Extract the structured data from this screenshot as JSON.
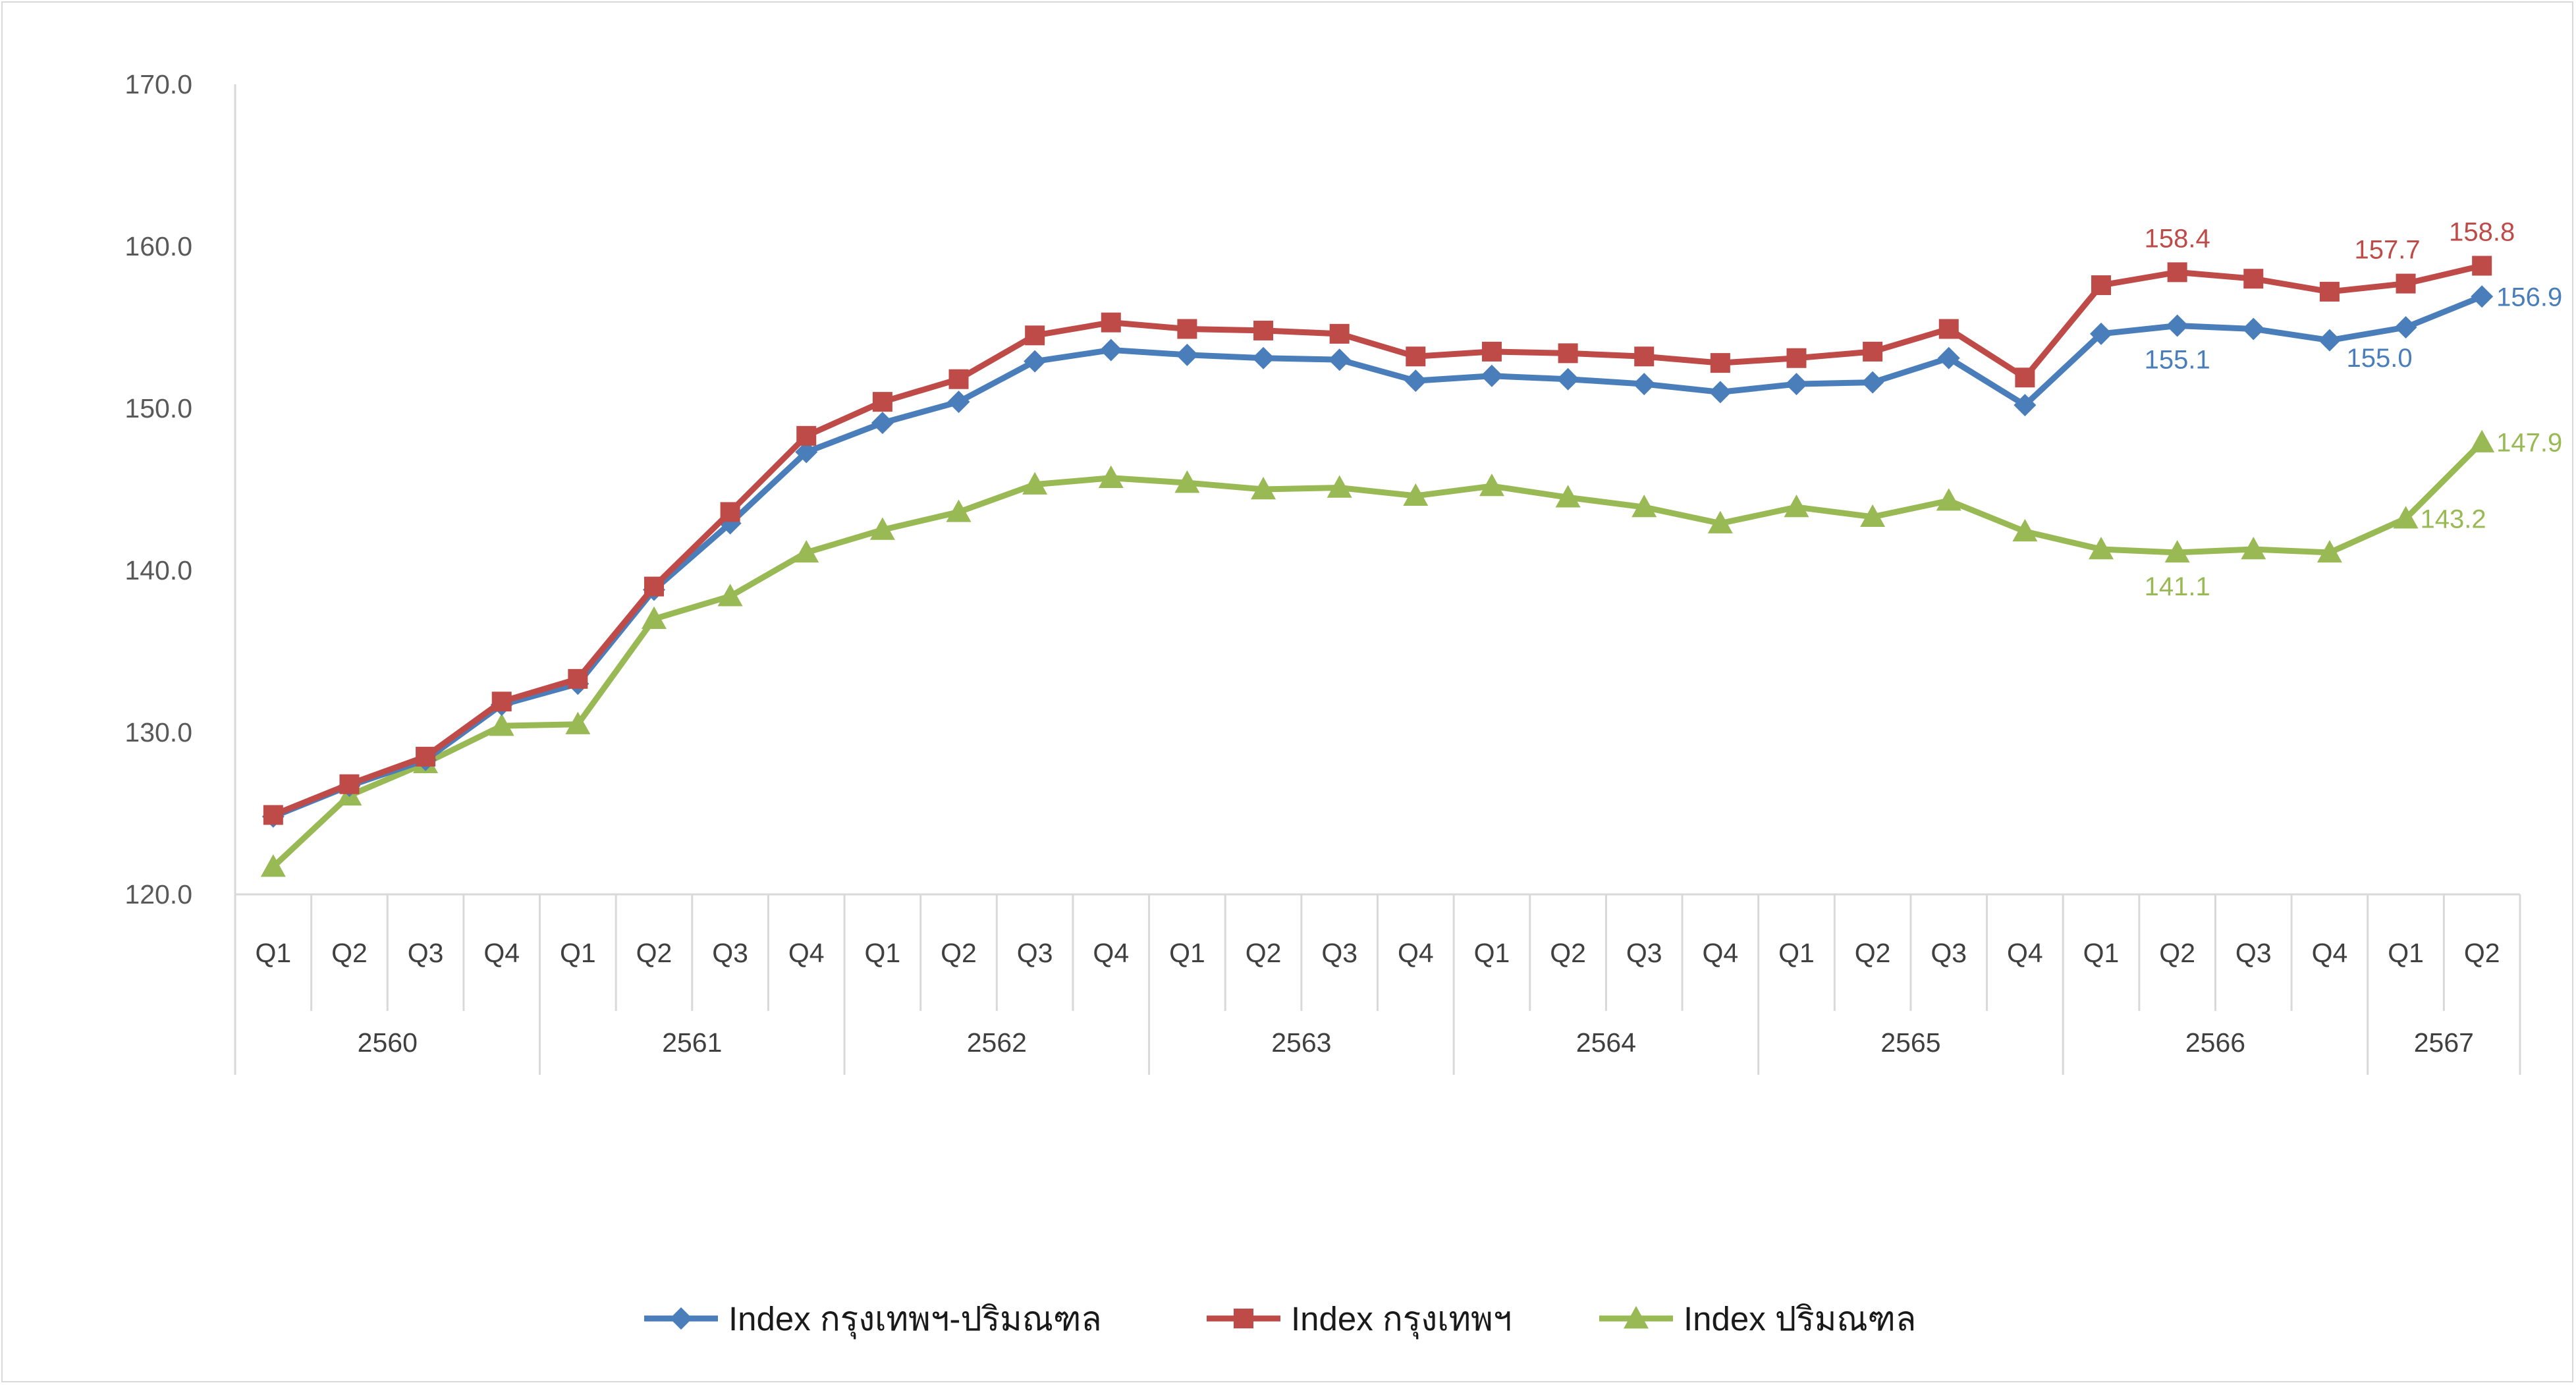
{
  "chart_data": {
    "type": "line",
    "title": "",
    "xlabel": "",
    "ylabel": "",
    "ylim": [
      120,
      170
    ],
    "yticks": [
      "120.0",
      "130.0",
      "140.0",
      "150.0",
      "160.0",
      "170.0"
    ],
    "grid": false,
    "legend_position": "bottom",
    "x": [
      {
        "q": "Q1",
        "year": "2560"
      },
      {
        "q": "Q2",
        "year": "2560"
      },
      {
        "q": "Q3",
        "year": "2560"
      },
      {
        "q": "Q4",
        "year": "2560"
      },
      {
        "q": "Q1",
        "year": "2561"
      },
      {
        "q": "Q2",
        "year": "2561"
      },
      {
        "q": "Q3",
        "year": "2561"
      },
      {
        "q": "Q4",
        "year": "2561"
      },
      {
        "q": "Q1",
        "year": "2562"
      },
      {
        "q": "Q2",
        "year": "2562"
      },
      {
        "q": "Q3",
        "year": "2562"
      },
      {
        "q": "Q4",
        "year": "2562"
      },
      {
        "q": "Q1",
        "year": "2563"
      },
      {
        "q": "Q2",
        "year": "2563"
      },
      {
        "q": "Q3",
        "year": "2563"
      },
      {
        "q": "Q4",
        "year": "2563"
      },
      {
        "q": "Q1",
        "year": "2564"
      },
      {
        "q": "Q2",
        "year": "2564"
      },
      {
        "q": "Q3",
        "year": "2564"
      },
      {
        "q": "Q4",
        "year": "2564"
      },
      {
        "q": "Q1",
        "year": "2565"
      },
      {
        "q": "Q2",
        "year": "2565"
      },
      {
        "q": "Q3",
        "year": "2565"
      },
      {
        "q": "Q4",
        "year": "2565"
      },
      {
        "q": "Q1",
        "year": "2566"
      },
      {
        "q": "Q2",
        "year": "2566"
      },
      {
        "q": "Q3",
        "year": "2566"
      },
      {
        "q": "Q4",
        "year": "2566"
      },
      {
        "q": "Q1",
        "year": "2567"
      },
      {
        "q": "Q2",
        "year": "2567"
      }
    ],
    "years": [
      {
        "label": "2560",
        "count": 4
      },
      {
        "label": "2561",
        "count": 4
      },
      {
        "label": "2562",
        "count": 4
      },
      {
        "label": "2563",
        "count": 4
      },
      {
        "label": "2564",
        "count": 4
      },
      {
        "label": "2565",
        "count": 4
      },
      {
        "label": "2566",
        "count": 4
      },
      {
        "label": "2567",
        "count": 2
      }
    ],
    "series": [
      {
        "name": "Index กรุงเทพฯ-ปริมณฑล",
        "color": "#4a7ebb",
        "marker": "diamond",
        "values": [
          124.8,
          126.7,
          128.3,
          131.7,
          133.0,
          138.8,
          142.9,
          147.3,
          149.1,
          150.4,
          152.9,
          153.6,
          153.3,
          153.1,
          153.0,
          151.7,
          152.0,
          151.8,
          151.5,
          151.0,
          151.5,
          151.6,
          153.1,
          150.2,
          154.6,
          155.1,
          154.9,
          154.2,
          155.0,
          156.9
        ],
        "labels": [
          {
            "index": 25,
            "text": "155.1",
            "position": "below"
          },
          {
            "index": 28,
            "text": "155.0",
            "position": "below-left"
          },
          {
            "index": 29,
            "text": "156.9",
            "position": "right"
          }
        ]
      },
      {
        "name": "Index กรุงเทพฯ",
        "color": "#be4b48",
        "marker": "square",
        "values": [
          124.9,
          126.8,
          128.5,
          131.9,
          133.3,
          139.0,
          143.6,
          148.3,
          150.4,
          151.8,
          154.5,
          155.3,
          154.9,
          154.8,
          154.6,
          153.2,
          153.5,
          153.4,
          153.2,
          152.8,
          153.1,
          153.5,
          154.9,
          151.9,
          157.6,
          158.4,
          158.0,
          157.2,
          157.7,
          158.8
        ],
        "labels": [
          {
            "index": 25,
            "text": "158.4",
            "position": "above"
          },
          {
            "index": 28,
            "text": "157.7",
            "position": "above-left"
          },
          {
            "index": 29,
            "text": "158.8",
            "position": "above"
          }
        ]
      },
      {
        "name": "Index ปริมณฑล",
        "color": "#98b954",
        "marker": "triangle",
        "values": [
          121.7,
          126.1,
          128.1,
          130.4,
          130.5,
          137.0,
          138.4,
          141.1,
          142.5,
          143.6,
          145.3,
          145.7,
          145.4,
          145.0,
          145.1,
          144.6,
          145.2,
          144.5,
          143.9,
          142.9,
          143.9,
          143.3,
          144.3,
          142.4,
          141.3,
          141.1,
          141.3,
          141.1,
          143.2,
          147.9
        ],
        "labels": [
          {
            "index": 25,
            "text": "141.1",
            "position": "below"
          },
          {
            "index": 28,
            "text": "143.2",
            "position": "right"
          },
          {
            "index": 29,
            "text": "147.9",
            "position": "right"
          }
        ]
      }
    ]
  }
}
